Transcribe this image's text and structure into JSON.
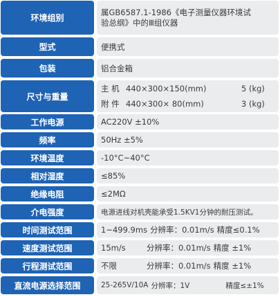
{
  "rows": [
    {
      "label": "环境组别",
      "value_lines": [
        "属GB6587.1-1986《电子测量仪器环境试",
        "验总纲》中的Ⅲ组仪器"
      ]
    },
    {
      "label": "型式",
      "value": "便携式"
    },
    {
      "label": "包装",
      "value": "铝合金箱"
    },
    {
      "label": "尺寸与重量",
      "weights": [
        {
          "name": "主  机",
          "dims": "440×300×150(mm)",
          "weight": "5 (kg)"
        },
        {
          "name": "附  件",
          "dims": "440×300× 80(mm)",
          "weight": "3 (kg)"
        }
      ]
    },
    {
      "label": "工作电源",
      "value": "AC220V ±10%"
    },
    {
      "label": "频率",
      "value": "50Hz ±5%"
    },
    {
      "label": "环境温度",
      "value": "-10°C~40°C"
    },
    {
      "label": "相对湿度",
      "value": "≤85%"
    },
    {
      "label": "绝缘电阻",
      "value": "≤2MΩ"
    },
    {
      "label": "介电强度",
      "value": "电源进线对机壳能承受1.5KV1分钟的耐压测试。"
    },
    {
      "label": "时间测试范围",
      "parts": [
        "1~499.9ms",
        "分辨率：0.01m/s",
        "精度≤0.1%"
      ]
    },
    {
      "label": "速度测试范围",
      "parts": [
        "15m/s",
        "分辨率：0.01m/s",
        "精度 ±1%"
      ]
    },
    {
      "label": "行程测试范围",
      "parts": [
        "不限",
        "分辨率：0.01m/s",
        "精度 ±1%"
      ]
    },
    {
      "label": "直流电源选择范围",
      "parts": [
        "25-265V/10A",
        "分辨率：1V",
        "精度≤±1%"
      ]
    }
  ],
  "colors": {
    "label_bg": "#1f63b4",
    "value_bg": "#eaecee",
    "label_text": "#ffffff",
    "value_text": "#3a3a3a"
  }
}
